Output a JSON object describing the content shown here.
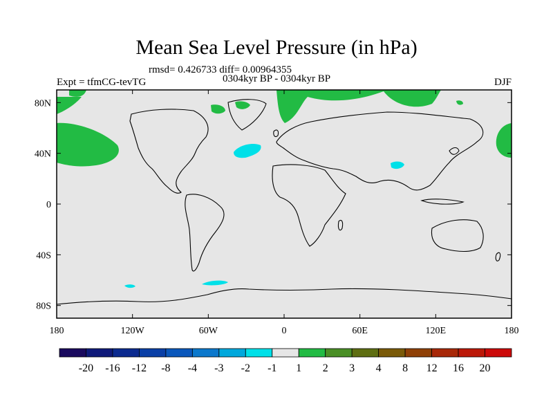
{
  "title": "Mean Sea Level Pressure (in hPa)",
  "stats_line": "rmsd= 0.426733 diff= 0.00964355",
  "period_line": "0304kyr BP - 0304kyr BP",
  "experiment": "Expt = tfmCG-tevTG",
  "season": "DJF",
  "colors": {
    "land_outline": "#000000",
    "background": "#e6e6e6",
    "positive_1_2": "#22bb44",
    "negative_2_1": "#00e0e8"
  },
  "axes": {
    "lon_ticks": [
      "180",
      "120W",
      "60W",
      "0",
      "60E",
      "120E",
      "180"
    ],
    "lat_ticks": [
      "80N",
      "40N",
      "0",
      "40S",
      "80S"
    ]
  },
  "colorbar": {
    "labels": [
      "-20",
      "-16",
      "-12",
      "-8",
      "-4",
      "-3",
      "-2",
      "-1",
      "1",
      "2",
      "3",
      "4",
      "8",
      "12",
      "16",
      "20"
    ],
    "colors": [
      "#1a0a5e",
      "#0f1a7a",
      "#0b2a8f",
      "#0a3fa6",
      "#0a57bb",
      "#0b78cc",
      "#00a8dc",
      "#00e0e8",
      "#e6e6e6",
      "#22bb44",
      "#4a8f26",
      "#5e6e12",
      "#7a5a08",
      "#8f4006",
      "#a82808",
      "#bb1808",
      "#cc0a0a"
    ]
  }
}
